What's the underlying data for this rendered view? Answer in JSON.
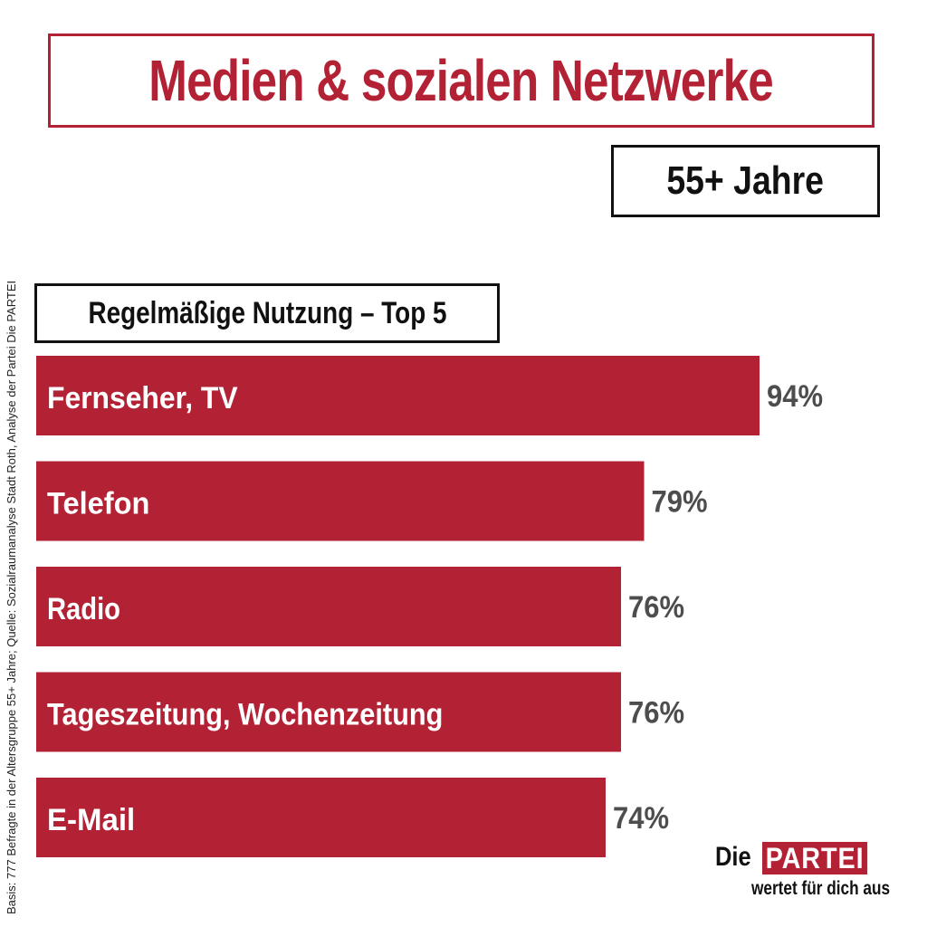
{
  "header": {
    "title": "Medien & sozialen Netzwerke",
    "subtitle": "55+ Jahre",
    "section": "Regelmäßige Nutzung – Top 5"
  },
  "source_note": "Basis: 777 Befragte in der Altersgruppe  55+ Jahre; Quelle:  Sozialraumanalyse  Stadt Roth, Analyse der Partei Die PARTEI",
  "logo": {
    "die": "Die",
    "partei": "PARTEI",
    "tagline": "wertet für dich aus"
  },
  "colors": {
    "bar": "#b32134",
    "value_label": "#4d4d4d",
    "bar_label": "#ffffff"
  },
  "chart_data": {
    "type": "bar",
    "orientation": "horizontal",
    "categories": [
      "Fernseher, TV",
      "Telefon",
      "Radio",
      "Tageszeitung, Wochenzeitung",
      "E-Mail"
    ],
    "values": [
      94,
      79,
      76,
      76,
      74
    ],
    "value_labels": [
      "94%",
      "79%",
      "76%",
      "76%",
      "74%"
    ],
    "xlim": [
      0,
      100
    ],
    "grid": false
  }
}
